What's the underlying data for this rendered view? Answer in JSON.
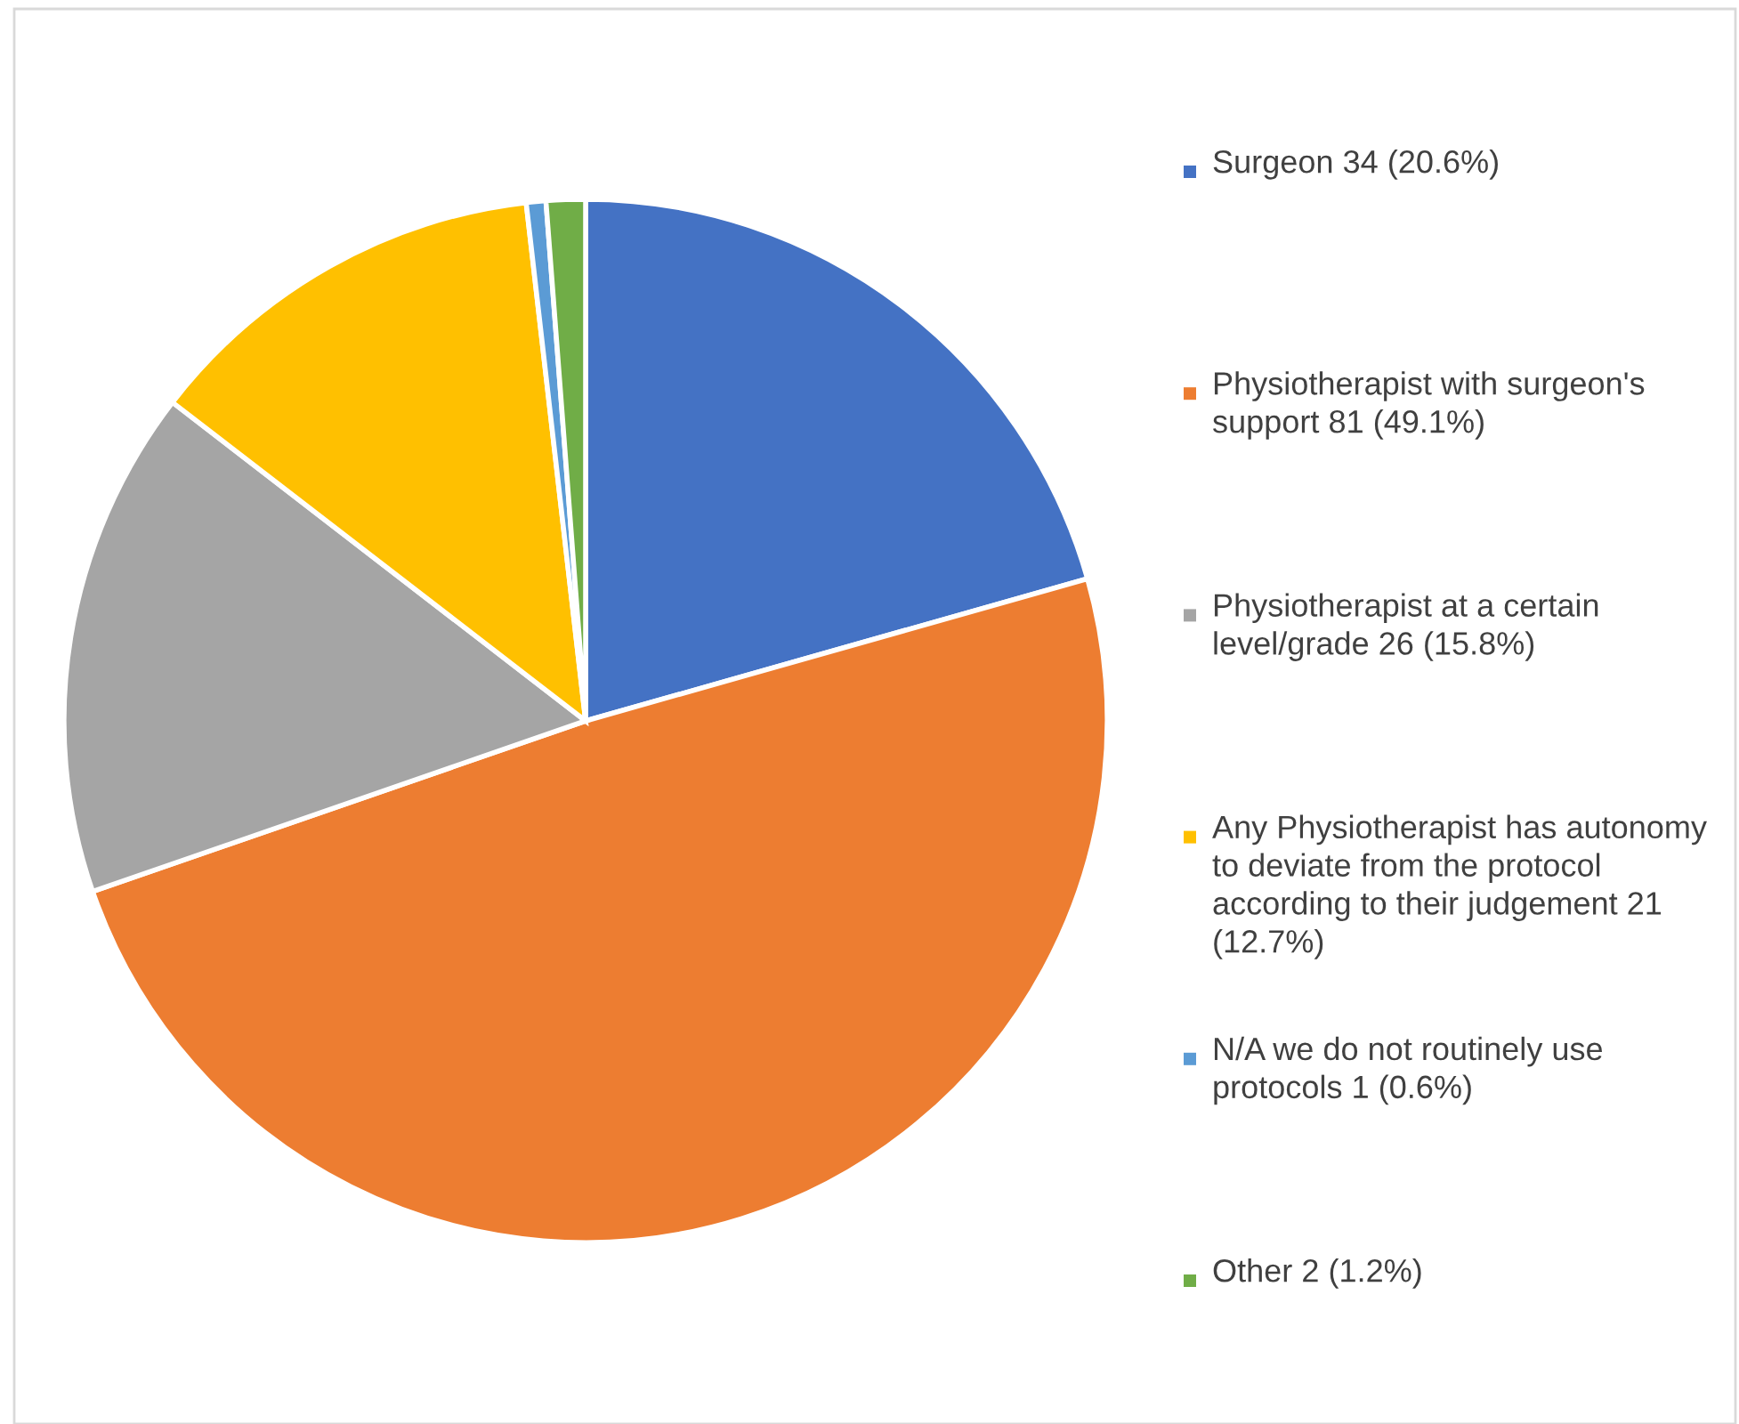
{
  "chart_data": {
    "type": "pie",
    "categories": [
      "Surgeon 34 (20.6%)",
      "Physiotherapist with surgeon's support 81 (49.1%)",
      "Physiotherapist at a certain level/grade 26 (15.8%)",
      "Any Physiotherapist has autonomy to deviate from the protocol according to their judgement 21 (12.7%)",
      "N/A we do not routinely use protocols 1 (0.6%)",
      "Other 2 (1.2%)"
    ],
    "values": [
      34,
      81,
      26,
      21,
      1,
      2
    ],
    "colors": [
      "#4472c4",
      "#ed7d31",
      "#a5a5a5",
      "#ffc000",
      "#5b9bd5",
      "#70ad47"
    ],
    "legend": "right"
  }
}
